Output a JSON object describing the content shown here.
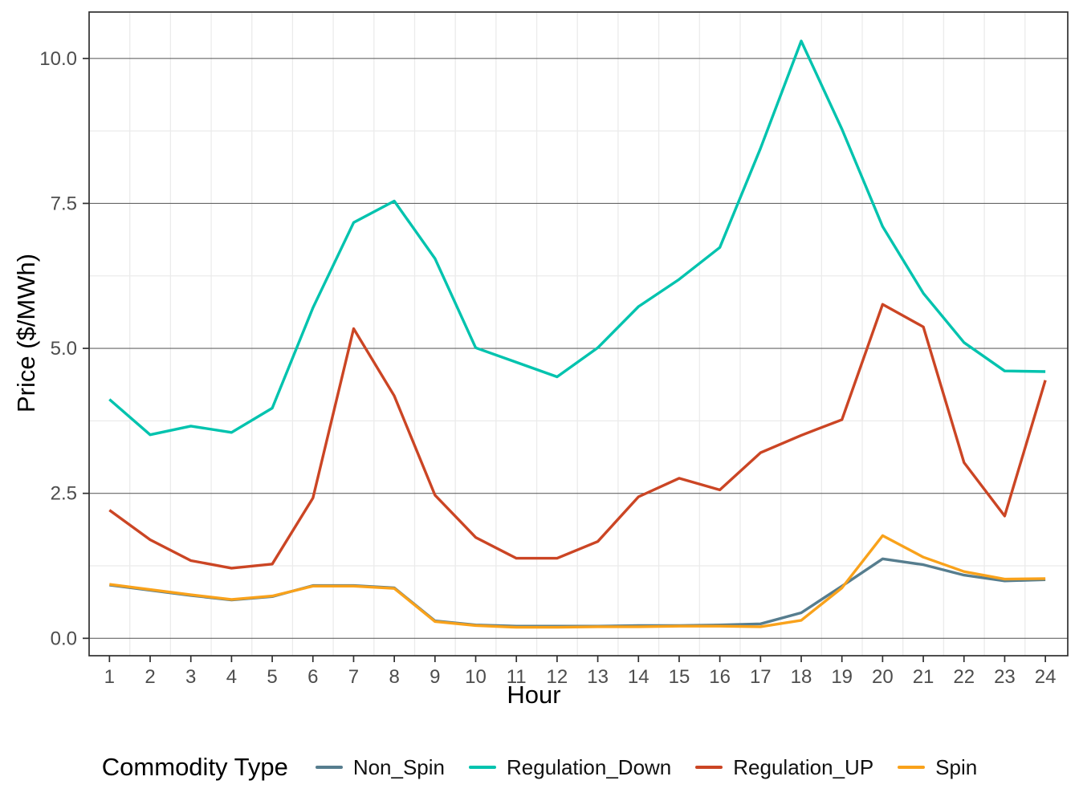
{
  "chart_data": {
    "type": "line",
    "title": "",
    "xlabel": "Hour",
    "ylabel": "Price ($/MWh)",
    "x": [
      1,
      2,
      3,
      4,
      5,
      6,
      7,
      8,
      9,
      10,
      11,
      12,
      13,
      14,
      15,
      16,
      17,
      18,
      19,
      20,
      21,
      22,
      23,
      24
    ],
    "x_tick_labels": [
      "1",
      "2",
      "3",
      "4",
      "5",
      "6",
      "7",
      "8",
      "9",
      "10",
      "11",
      "12",
      "13",
      "14",
      "15",
      "16",
      "17",
      "18",
      "19",
      "20",
      "21",
      "22",
      "23",
      "24"
    ],
    "series": [
      {
        "name": "Non_Spin",
        "color": "#567D8E",
        "values": [
          0.92,
          0.83,
          0.74,
          0.66,
          0.72,
          0.91,
          0.91,
          0.87,
          0.3,
          0.23,
          0.21,
          0.21,
          0.21,
          0.22,
          0.22,
          0.23,
          0.25,
          0.44,
          0.9,
          1.37,
          1.27,
          1.09,
          0.99,
          1.01
        ]
      },
      {
        "name": "Regulation_Down",
        "color": "#00C3AE",
        "values": [
          4.12,
          3.51,
          3.66,
          3.55,
          3.97,
          5.7,
          7.17,
          7.54,
          6.55,
          5.01,
          4.76,
          4.51,
          5.01,
          5.72,
          6.19,
          6.74,
          8.45,
          10.3,
          8.78,
          7.1,
          5.95,
          5.1,
          4.61,
          4.6
        ]
      },
      {
        "name": "Regulation_UP",
        "color": "#CB4524",
        "values": [
          2.21,
          1.7,
          1.34,
          1.21,
          1.28,
          2.42,
          5.34,
          4.18,
          2.47,
          1.74,
          1.38,
          1.38,
          1.67,
          2.44,
          2.76,
          2.56,
          3.2,
          3.5,
          3.77,
          5.76,
          5.37,
          3.03,
          2.11,
          4.45
        ]
      },
      {
        "name": "Spin",
        "color": "#F9A21B",
        "values": [
          0.93,
          0.84,
          0.75,
          0.67,
          0.73,
          0.9,
          0.9,
          0.86,
          0.29,
          0.22,
          0.19,
          0.19,
          0.2,
          0.2,
          0.21,
          0.21,
          0.2,
          0.31,
          0.87,
          1.77,
          1.4,
          1.15,
          1.02,
          1.03
        ]
      }
    ],
    "y_ticks": {
      "labels": [
        "0.0",
        "2.5",
        "5.0",
        "7.5",
        "10.0"
      ],
      "values": [
        0,
        2.5,
        5,
        7.5,
        10
      ]
    },
    "y_minor_gridlines": [
      1.25,
      3.75,
      6.25,
      8.75
    ],
    "ylim": [
      -0.3,
      10.8
    ],
    "xlim": [
      0.5,
      24.55
    ],
    "grid": {
      "major_y_color": "#666666",
      "minor_color": "#EBEBEB",
      "panel_border_color": "#2F2F2F",
      "tick_color": "#2F2F2F",
      "tick_label_color": "#4D4D4D"
    },
    "legend": {
      "title": "Commodity Type",
      "position": "bottom"
    }
  }
}
